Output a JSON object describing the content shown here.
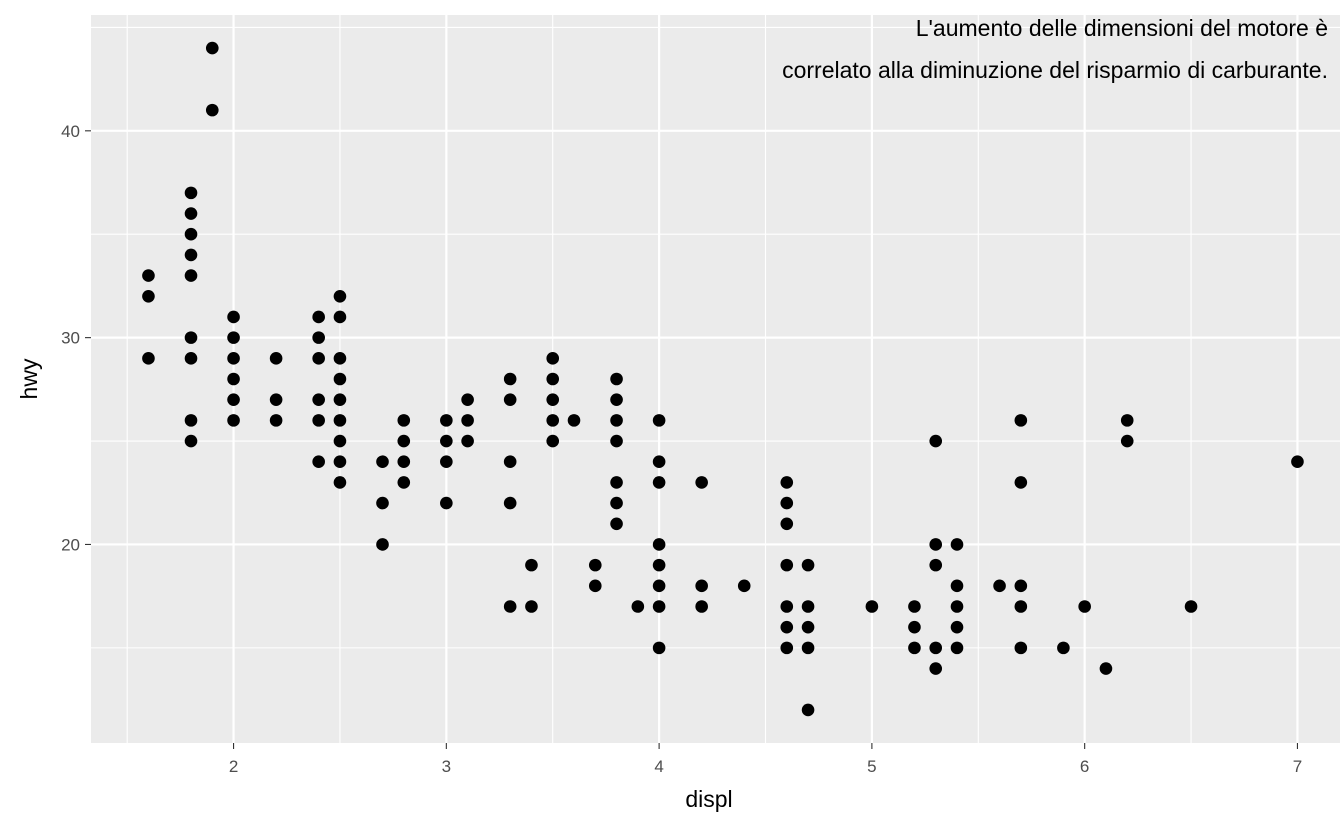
{
  "chart_data": {
    "type": "scatter",
    "title": "",
    "xlabel": "displ",
    "ylabel": "hwy",
    "xlim": [
      1.33,
      7.2
    ],
    "ylim": [
      10.4,
      45.6
    ],
    "x_ticks": [
      "2",
      "3",
      "4",
      "5",
      "6",
      "7"
    ],
    "y_ticks": [
      "20",
      "30",
      "40"
    ],
    "grid": true,
    "legend": "none",
    "colors": {
      "panel": "#ebebeb",
      "grid": "#ffffff",
      "point": "#000000",
      "tick": "#4d4d4d"
    },
    "annotation": {
      "x": 7.2,
      "y": 45.6,
      "lines": [
        "L'aumento delle dimensioni del motore è",
        "correlato alla diminuzione del risparmio di carburante."
      ]
    },
    "points": [
      [
        1.6,
        33
      ],
      [
        1.6,
        32
      ],
      [
        1.6,
        29
      ],
      [
        1.8,
        37
      ],
      [
        1.8,
        36
      ],
      [
        1.8,
        35
      ],
      [
        1.8,
        34
      ],
      [
        1.8,
        33
      ],
      [
        1.8,
        30
      ],
      [
        1.8,
        29
      ],
      [
        1.8,
        26
      ],
      [
        1.8,
        25
      ],
      [
        1.9,
        44
      ],
      [
        1.9,
        41
      ],
      [
        2.0,
        31
      ],
      [
        2.0,
        30
      ],
      [
        2.0,
        29
      ],
      [
        2.0,
        28
      ],
      [
        2.0,
        27
      ],
      [
        2.0,
        26
      ],
      [
        2.2,
        29
      ],
      [
        2.2,
        27
      ],
      [
        2.2,
        26
      ],
      [
        2.4,
        31
      ],
      [
        2.4,
        30
      ],
      [
        2.4,
        29
      ],
      [
        2.4,
        27
      ],
      [
        2.4,
        26
      ],
      [
        2.4,
        24
      ],
      [
        2.5,
        32
      ],
      [
        2.5,
        31
      ],
      [
        2.5,
        29
      ],
      [
        2.5,
        28
      ],
      [
        2.5,
        27
      ],
      [
        2.5,
        26
      ],
      [
        2.5,
        25
      ],
      [
        2.5,
        24
      ],
      [
        2.5,
        23
      ],
      [
        2.7,
        24
      ],
      [
        2.7,
        22
      ],
      [
        2.7,
        20
      ],
      [
        2.8,
        26
      ],
      [
        2.8,
        25
      ],
      [
        2.8,
        24
      ],
      [
        2.8,
        23
      ],
      [
        3.0,
        26
      ],
      [
        3.0,
        25
      ],
      [
        3.0,
        24
      ],
      [
        3.0,
        22
      ],
      [
        3.1,
        27
      ],
      [
        3.1,
        26
      ],
      [
        3.1,
        25
      ],
      [
        3.3,
        28
      ],
      [
        3.3,
        27
      ],
      [
        3.3,
        24
      ],
      [
        3.3,
        22
      ],
      [
        3.3,
        17
      ],
      [
        3.4,
        19
      ],
      [
        3.4,
        17
      ],
      [
        3.5,
        29
      ],
      [
        3.5,
        28
      ],
      [
        3.5,
        27
      ],
      [
        3.5,
        26
      ],
      [
        3.5,
        25
      ],
      [
        3.6,
        26
      ],
      [
        3.7,
        19
      ],
      [
        3.7,
        18
      ],
      [
        3.8,
        28
      ],
      [
        3.8,
        27
      ],
      [
        3.8,
        26
      ],
      [
        3.8,
        25
      ],
      [
        3.8,
        23
      ],
      [
        3.8,
        22
      ],
      [
        3.8,
        21
      ],
      [
        3.9,
        17
      ],
      [
        4.0,
        26
      ],
      [
        4.0,
        24
      ],
      [
        4.0,
        23
      ],
      [
        4.0,
        20
      ],
      [
        4.0,
        19
      ],
      [
        4.0,
        18
      ],
      [
        4.0,
        17
      ],
      [
        4.0,
        15
      ],
      [
        4.2,
        23
      ],
      [
        4.2,
        18
      ],
      [
        4.2,
        17
      ],
      [
        4.4,
        18
      ],
      [
        4.6,
        23
      ],
      [
        4.6,
        22
      ],
      [
        4.6,
        21
      ],
      [
        4.6,
        19
      ],
      [
        4.6,
        17
      ],
      [
        4.6,
        16
      ],
      [
        4.6,
        15
      ],
      [
        4.7,
        19
      ],
      [
        4.7,
        17
      ],
      [
        4.7,
        16
      ],
      [
        4.7,
        15
      ],
      [
        4.7,
        12
      ],
      [
        5.0,
        17
      ],
      [
        5.2,
        17
      ],
      [
        5.2,
        16
      ],
      [
        5.2,
        15
      ],
      [
        5.3,
        25
      ],
      [
        5.3,
        20
      ],
      [
        5.3,
        19
      ],
      [
        5.3,
        15
      ],
      [
        5.3,
        14
      ],
      [
        5.4,
        20
      ],
      [
        5.4,
        18
      ],
      [
        5.4,
        17
      ],
      [
        5.4,
        16
      ],
      [
        5.4,
        15
      ],
      [
        5.6,
        18
      ],
      [
        5.7,
        26
      ],
      [
        5.7,
        23
      ],
      [
        5.7,
        18
      ],
      [
        5.7,
        17
      ],
      [
        5.7,
        15
      ],
      [
        5.9,
        15
      ],
      [
        6.0,
        17
      ],
      [
        6.1,
        14
      ],
      [
        6.2,
        26
      ],
      [
        6.2,
        25
      ],
      [
        6.5,
        17
      ],
      [
        7.0,
        24
      ]
    ]
  }
}
